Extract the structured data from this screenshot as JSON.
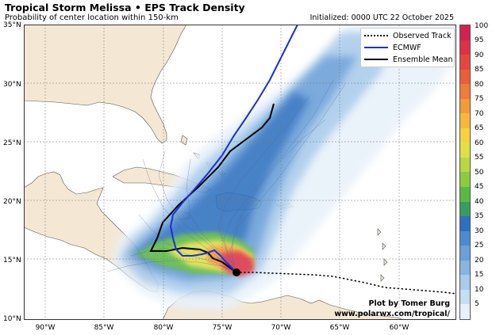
{
  "header": {
    "title": "Tropical Storm Melissa • EPS Track Density",
    "subtitle": "Probability of center location within 150-km",
    "initialized": "Initialized: 0000 UTC 22 October 2025"
  },
  "legend": [
    {
      "label": "Observed Track",
      "style": "dotted",
      "color": "#000000"
    },
    {
      "label": "ECMWF",
      "style": "solid",
      "color": "#1a2fd6"
    },
    {
      "label": "Ensemble Mean",
      "style": "solid",
      "color": "#000000"
    }
  ],
  "axes": {
    "lat_labels": [
      "35°N",
      "30°N",
      "25°N",
      "20°N",
      "15°N",
      "10°N"
    ],
    "lon_labels": [
      "90°W",
      "85°W",
      "80°W",
      "75°W",
      "70°W",
      "65°W",
      "60°W"
    ]
  },
  "colorbar": {
    "labels": [
      "100",
      "95",
      "90",
      "85",
      "80",
      "75",
      "70",
      "65",
      "60",
      "55",
      "50",
      "45",
      "40",
      "35",
      "30",
      "25",
      "20",
      "15",
      "10",
      "5"
    ],
    "colors": [
      "#e8f1fa",
      "#c8def2",
      "#a9cbeb",
      "#87b4e1",
      "#6a9fd8",
      "#4d8bd0",
      "#2f6fbf",
      "#3a9a63",
      "#5cb844",
      "#8ccb3e",
      "#b8d842",
      "#dfe047",
      "#f4d43b",
      "#f6b83a",
      "#f39a39",
      "#ef7c39",
      "#eb5e3c",
      "#e64641",
      "#de3148",
      "#d32152"
    ]
  },
  "credit": {
    "line1": "Plot by Tomer Burg",
    "line2": "www.polarwx.com/tropical/"
  },
  "map_colors": {
    "ocean": "#ffffff",
    "land": "#f4e7d4",
    "coast": "#555555",
    "observed": "#000000",
    "ecmwf": "#1a2fd6",
    "ensemble_mean": "#000000"
  }
}
